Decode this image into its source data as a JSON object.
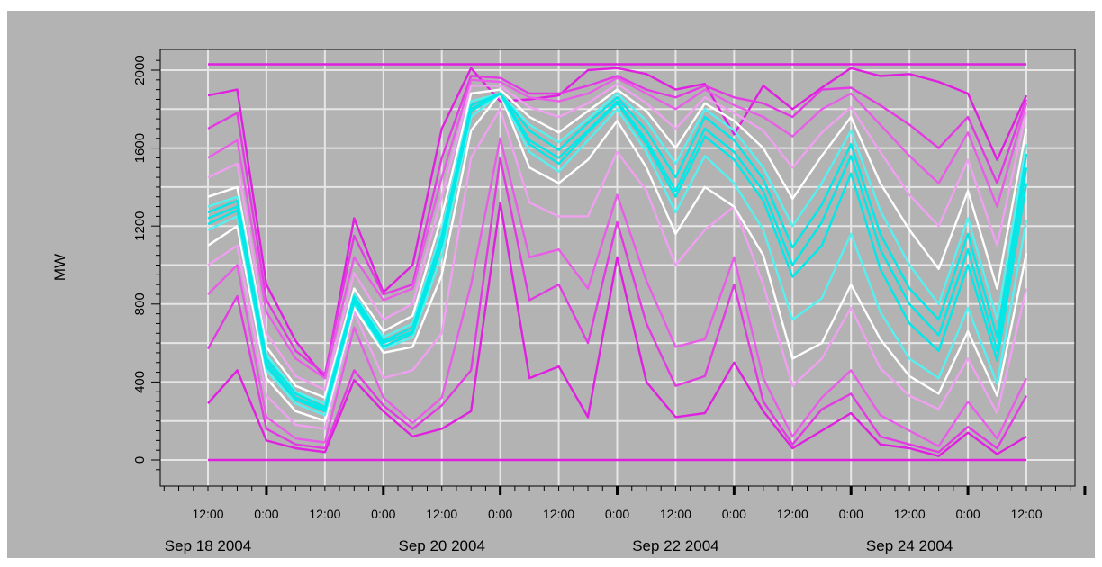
{
  "chart_data": {
    "type": "line",
    "title": "",
    "xlabel": "",
    "ylabel": "MW",
    "ylim": [
      0,
      2030
    ],
    "yticks": [
      "0",
      "400",
      "800",
      "1200",
      "1600",
      "2000"
    ],
    "xlim": [
      "2004-09-18 12:00",
      "2004-09-25 12:00"
    ],
    "xtick_time_labels": [
      "12:00",
      "0:00",
      "12:00",
      "0:00",
      "12:00",
      "0:00",
      "12:00",
      "0:00",
      "12:00",
      "0:00",
      "12:00",
      "0:00",
      "12:00",
      "0:00",
      "12:00"
    ],
    "xtick_date_labels": [
      "Sep 18 2004",
      "Sep 20 2004",
      "Sep 22 2004",
      "Sep 24 2004"
    ],
    "grid": true,
    "legend": "none",
    "colors": {
      "background": "#b3b3b3",
      "grid": "#e6e6e6",
      "outer_band": "#e020e0",
      "inner_band": "#f0a0f0",
      "median": "#ffffff",
      "core": "#00e8e8",
      "bounds": "#e020e0"
    },
    "x_hours": [
      0,
      6,
      12,
      18,
      24,
      30,
      36,
      42,
      48,
      54,
      60,
      66,
      72,
      78,
      84,
      90,
      96,
      102,
      108,
      114,
      120,
      126,
      132,
      138,
      144,
      150,
      156,
      162,
      168
    ],
    "horizontal_bounds": [
      0,
      2030
    ],
    "series": [
      {
        "quantile": 0.01,
        "values": [
          290,
          460,
          100,
          60,
          40,
          410,
          250,
          120,
          160,
          250,
          1320,
          420,
          480,
          220,
          1040,
          400,
          220,
          240,
          500,
          250,
          60,
          150,
          240,
          80,
          60,
          20,
          140,
          30,
          120
        ]
      },
      {
        "quantile": 0.05,
        "values": [
          570,
          840,
          160,
          80,
          60,
          460,
          280,
          160,
          280,
          460,
          1550,
          820,
          900,
          600,
          1220,
          700,
          380,
          430,
          900,
          300,
          80,
          260,
          340,
          120,
          80,
          40,
          170,
          60,
          330
        ]
      },
      {
        "quantile": 0.1,
        "values": [
          850,
          1000,
          220,
          110,
          90,
          680,
          320,
          190,
          320,
          900,
          1650,
          1040,
          1080,
          880,
          1360,
          920,
          580,
          620,
          1040,
          420,
          120,
          320,
          460,
          230,
          150,
          70,
          300,
          110,
          420
        ]
      },
      {
        "quantile": 0.2,
        "values": [
          1000,
          1100,
          330,
          180,
          160,
          760,
          420,
          460,
          650,
          1550,
          1800,
          1320,
          1250,
          1250,
          1580,
          1380,
          1000,
          1180,
          1300,
          900,
          380,
          520,
          780,
          470,
          330,
          260,
          520,
          240,
          880
        ]
      },
      {
        "quantile": 0.3,
        "values": [
          1100,
          1200,
          420,
          250,
          200,
          780,
          550,
          580,
          950,
          1690,
          1880,
          1500,
          1420,
          1540,
          1740,
          1500,
          1160,
          1400,
          1300,
          1050,
          520,
          600,
          900,
          620,
          430,
          340,
          660,
          330,
          1060
        ]
      },
      {
        "quantile": 0.4,
        "values": [
          1180,
          1250,
          460,
          290,
          230,
          800,
          570,
          630,
          1050,
          1760,
          1880,
          1580,
          1480,
          1640,
          1800,
          1580,
          1270,
          1560,
          1420,
          1180,
          720,
          830,
          1160,
          760,
          520,
          420,
          780,
          390,
          1230
        ]
      },
      {
        "quantile": 0.45,
        "values": [
          1210,
          1280,
          480,
          310,
          250,
          810,
          580,
          650,
          1100,
          1790,
          1880,
          1620,
          1520,
          1680,
          1830,
          1620,
          1350,
          1660,
          1540,
          1330,
          940,
          1100,
          1470,
          980,
          700,
          560,
          1000,
          510,
          1420
        ]
      },
      {
        "quantile": 0.5,
        "values": [
          1240,
          1300,
          500,
          320,
          260,
          820,
          600,
          660,
          1130,
          1800,
          1880,
          1640,
          1550,
          1690,
          1840,
          1640,
          1380,
          1700,
          1580,
          1380,
          1000,
          1220,
          1560,
          1080,
          800,
          640,
          1080,
          560,
          1500
        ]
      },
      {
        "quantile": 0.55,
        "values": [
          1270,
          1330,
          520,
          340,
          270,
          840,
          610,
          680,
          1150,
          1820,
          1880,
          1690,
          1590,
          1730,
          1860,
          1690,
          1450,
          1760,
          1640,
          1440,
          1090,
          1310,
          1620,
          1160,
          880,
          720,
          1160,
          630,
          1570
        ]
      },
      {
        "quantile": 0.6,
        "values": [
          1300,
          1350,
          540,
          350,
          290,
          850,
          630,
          700,
          1180,
          1840,
          1880,
          1720,
          1630,
          1750,
          1880,
          1740,
          1520,
          1800,
          1690,
          1500,
          1200,
          1420,
          1690,
          1280,
          1000,
          800,
          1240,
          720,
          1620
        ]
      },
      {
        "quantile": 0.7,
        "values": [
          1350,
          1400,
          580,
          380,
          320,
          880,
          660,
          740,
          1250,
          1880,
          1900,
          1760,
          1680,
          1790,
          1900,
          1790,
          1600,
          1830,
          1740,
          1600,
          1340,
          1560,
          1760,
          1420,
          1180,
          980,
          1380,
          880,
          1700
        ]
      },
      {
        "quantile": 0.8,
        "values": [
          1450,
          1520,
          650,
          430,
          360,
          960,
          720,
          800,
          1350,
          1920,
          1920,
          1810,
          1760,
          1830,
          1930,
          1830,
          1700,
          1860,
          1780,
          1690,
          1500,
          1680,
          1810,
          1580,
          1360,
          1200,
          1540,
          1100,
          1790
        ]
      },
      {
        "quantile": 0.9,
        "values": [
          1550,
          1640,
          760,
          520,
          420,
          1040,
          820,
          880,
          1450,
          1950,
          1940,
          1860,
          1840,
          1880,
          1960,
          1880,
          1800,
          1900,
          1820,
          1760,
          1660,
          1800,
          1880,
          1720,
          1560,
          1420,
          1680,
          1300,
          1830
        ]
      },
      {
        "quantile": 0.95,
        "values": [
          1700,
          1780,
          820,
          560,
          440,
          1150,
          850,
          900,
          1550,
          1970,
          1960,
          1880,
          1880,
          1920,
          1970,
          1900,
          1860,
          1920,
          1860,
          1830,
          1760,
          1900,
          1910,
          1820,
          1720,
          1600,
          1760,
          1420,
          1850
        ]
      },
      {
        "quantile": 0.99,
        "values": [
          1870,
          1900,
          900,
          610,
          420,
          1240,
          860,
          1000,
          1700,
          2010,
          1840,
          1850,
          1870,
          2000,
          2010,
          1980,
          1900,
          1930,
          1670,
          1920,
          1800,
          1910,
          2010,
          1970,
          1980,
          1940,
          1880,
          1540,
          1870
        ]
      }
    ]
  }
}
